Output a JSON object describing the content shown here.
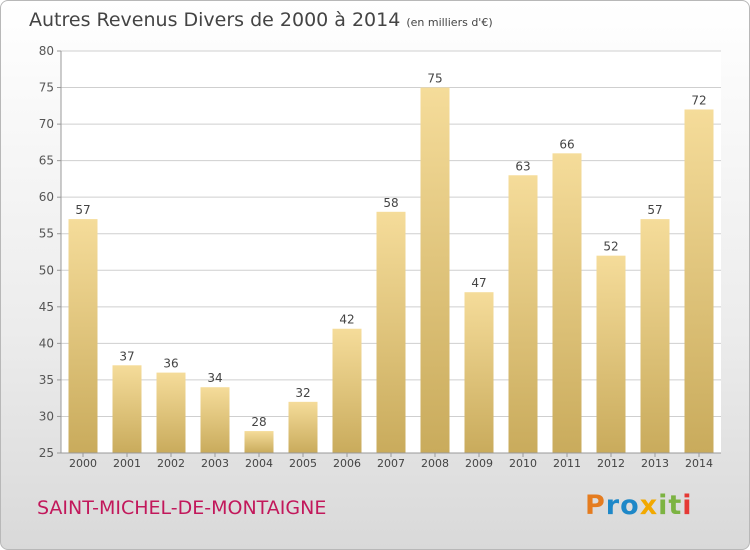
{
  "title": "Autres Revenus Divers de 2000 à 2014",
  "subtitle": "(en milliers d'€)",
  "place_name": "SAINT-MICHEL-DE-MONTAIGNE",
  "brand": "Proxiti",
  "colors": {
    "bar_top": "#f5dc9a",
    "bar_bottom": "#c9ab5c",
    "place": "#c2185b",
    "grid": "#cfcfcf",
    "axis": "#999999"
  },
  "chart_data": {
    "type": "bar",
    "categories": [
      "2000",
      "2001",
      "2002",
      "2003",
      "2004",
      "2005",
      "2006",
      "2007",
      "2008",
      "2009",
      "2010",
      "2011",
      "2012",
      "2013",
      "2014"
    ],
    "values": [
      57,
      37,
      36,
      34,
      28,
      32,
      42,
      58,
      75,
      47,
      63,
      66,
      52,
      57,
      72
    ],
    "ylim": [
      25,
      80
    ],
    "yticks": [
      25,
      30,
      35,
      40,
      45,
      50,
      55,
      60,
      65,
      70,
      75,
      80
    ],
    "grid": true,
    "xlabel": "",
    "ylabel": ""
  }
}
